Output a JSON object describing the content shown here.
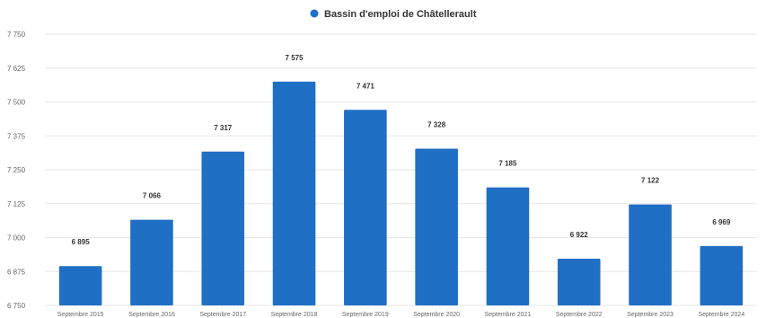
{
  "chart_data": {
    "type": "bar",
    "legend": {
      "entries": [
        "Bassin d'emploi de Châtellerault"
      ],
      "placement": "top-center"
    },
    "categories": [
      "Septembre 2015",
      "Septembre 2016",
      "Septembre 2017",
      "Septembre 2018",
      "Septembre 2019",
      "Septembre 2020",
      "Septembre 2021",
      "Septembre 2022",
      "Septembre 2023",
      "Septembre 2024"
    ],
    "series": [
      {
        "name": "Bassin d'emploi de Châtellerault",
        "color": "#1f6fc5",
        "values": [
          6895,
          7066,
          7317,
          7575,
          7471,
          7328,
          7185,
          6922,
          7122,
          6969
        ],
        "labels": [
          "6 895",
          "7 066",
          "7 317",
          "7 575",
          "7 471",
          "7 328",
          "7 185",
          "6 922",
          "7 122",
          "6 969"
        ]
      }
    ],
    "ylim": [
      6750,
      7750
    ],
    "yticks": [
      6750,
      6875,
      7000,
      7125,
      7250,
      7375,
      7500,
      7625,
      7750
    ],
    "ytick_labels": [
      "6 750",
      "6 875",
      "7 000",
      "7 125",
      "7 250",
      "7 375",
      "7 500",
      "7 625",
      "7 750"
    ],
    "grid": true,
    "title": "",
    "xlabel": "",
    "ylabel": ""
  }
}
